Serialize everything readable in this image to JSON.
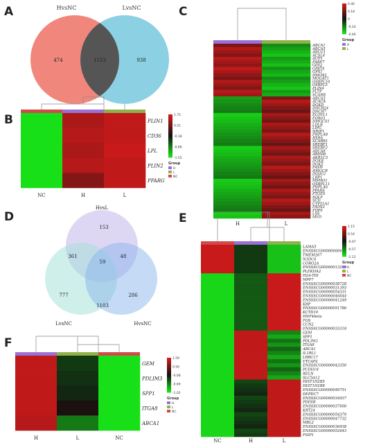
{
  "panels": {
    "A": {
      "letter": "A",
      "type": "venn2",
      "sets": [
        "HvsNC",
        "LvsNC"
      ],
      "counts": {
        "left_only": "474",
        "both": "1153",
        "right_only": "938"
      },
      "colors": [
        "#f07a6e",
        "#7fcbe0",
        "#555555"
      ]
    },
    "B": {
      "letter": "B",
      "columns": [
        "NC",
        "H",
        "L"
      ],
      "genes": [
        "PLIN1",
        "CD36",
        "LPL",
        "PLIN2",
        "PPARG"
      ],
      "legend_ticks": [
        "1.75",
        "0.51",
        "-0.18",
        "-0.86",
        "-1.55"
      ],
      "group_title": "Group",
      "groups": [
        "H",
        "L",
        "NC"
      ]
    },
    "C": {
      "letter": "C",
      "columns": [
        "H",
        "L"
      ],
      "legend_ticks": [
        "0.46",
        "0.18",
        "0",
        "-0.24",
        "-0.46"
      ],
      "group_title": "Group",
      "groups": [
        "H",
        "L"
      ],
      "genes": [
        "ABCA1",
        "ABCA5",
        "ABCG1",
        "ACSL4",
        "AUP1",
        "FABP7",
        "G0S2",
        "GPAT4",
        "GPX1",
        "HMOX1",
        "MOGAT1",
        "OSBPL10",
        "OSBPL5",
        "PLIN4",
        "PLTP",
        "SCARB",
        "ABCA3",
        "ACACA",
        "DGKD",
        "DHCR24",
        "DHCR7",
        "ELOVL1",
        "FOXO1",
        "HMGCS1",
        "LDLR",
        "LIPG",
        "NRIP1",
        "PNPLA8",
        "RXRA",
        "SCARB1",
        "SREBF1",
        "SREBF2",
        "ABCA8",
        "ABHD6",
        "AKR1C3",
        "DGKB",
        "DGKZ",
        "FASN",
        "HMGCR",
        "INSIG1",
        "LRP1",
        "MSMO1",
        "OSBPL11",
        "PNPLA6",
        "PPARA",
        "PTGES",
        "SQLE",
        "SCD",
        "CYP51A1",
        "FADS2",
        "FDPS",
        "LSS",
        "MVD"
      ]
    },
    "D": {
      "letter": "D",
      "type": "venn3",
      "sets": [
        "HvsL",
        "LvsNC",
        "HvsNC"
      ],
      "counts": {
        "top_only": "153",
        "left_only": "777",
        "right_only": "286",
        "top_left": "361",
        "top_right": "48",
        "left_right": "1103",
        "center": "59"
      }
    },
    "E": {
      "letter": "E",
      "columns": [
        "NC",
        "H",
        "L"
      ],
      "legend_ticks": [
        "1.15",
        "0.54",
        "-0.07",
        "-0.57",
        "-1.12"
      ],
      "group_title": "Group",
      "groups": [
        "H",
        "L",
        "NC"
      ],
      "genes": [
        "LAMA5",
        "ENSSSCG00000000618",
        "TMEM267",
        "N3DC4",
        "CORO2A",
        "ENSSSCG00000013239",
        "PLEKHA2",
        "H2A-TIII",
        "MPP7",
        "ENSSSCG00000038728",
        "ENSSSCG00000031393",
        "ENSSSCG00000054331",
        "ENSSSCG00000046644",
        "ENSSSCG00000041249",
        "KRP",
        "ENSSSCG00000051786",
        "KCTD19",
        "HNF4beta",
        "FOS",
        "CCN2",
        "ENSSSCG00000033318",
        "GEM",
        "SPP1",
        "PDLIM3",
        "ITGA8",
        "ABCA1",
        "IL1RL1",
        "LRRC17",
        "VTCAP2",
        "ENSSSCG00000043350",
        "PCDH18",
        "RELN",
        "SLC5A12",
        "HIST1H2B5",
        "HIST1H2B8",
        "ENSSSCG00000049751",
        "DEPDC7",
        "ENSSSCG00000034937",
        "PDE6B",
        "ENSSSCG00000037666",
        "KRT24",
        "ENSSSCG00000054379",
        "ENSSSCG00000047732",
        "MBL2",
        "ENSSSCG00000036938",
        "ENSSSCG00000052643",
        "FSIP1"
      ]
    },
    "F": {
      "letter": "F",
      "columns": [
        "H",
        "L",
        "NC"
      ],
      "genes": [
        "GEM",
        "PDLIM3",
        "SPP1",
        "ITGA8",
        "ABCA1"
      ],
      "legend_ticks": [
        "1.59",
        "0.56",
        "-0.08",
        "-0.69",
        "-1.02"
      ],
      "group_title": "Group",
      "groups": [
        "H",
        "L",
        "NC"
      ]
    }
  },
  "colors": {
    "high": "#d21a1a",
    "mid": "#111111",
    "low": "#18e018",
    "H": "#9b6fd6",
    "L": "#8fb04a",
    "NC": "#d2494a"
  }
}
